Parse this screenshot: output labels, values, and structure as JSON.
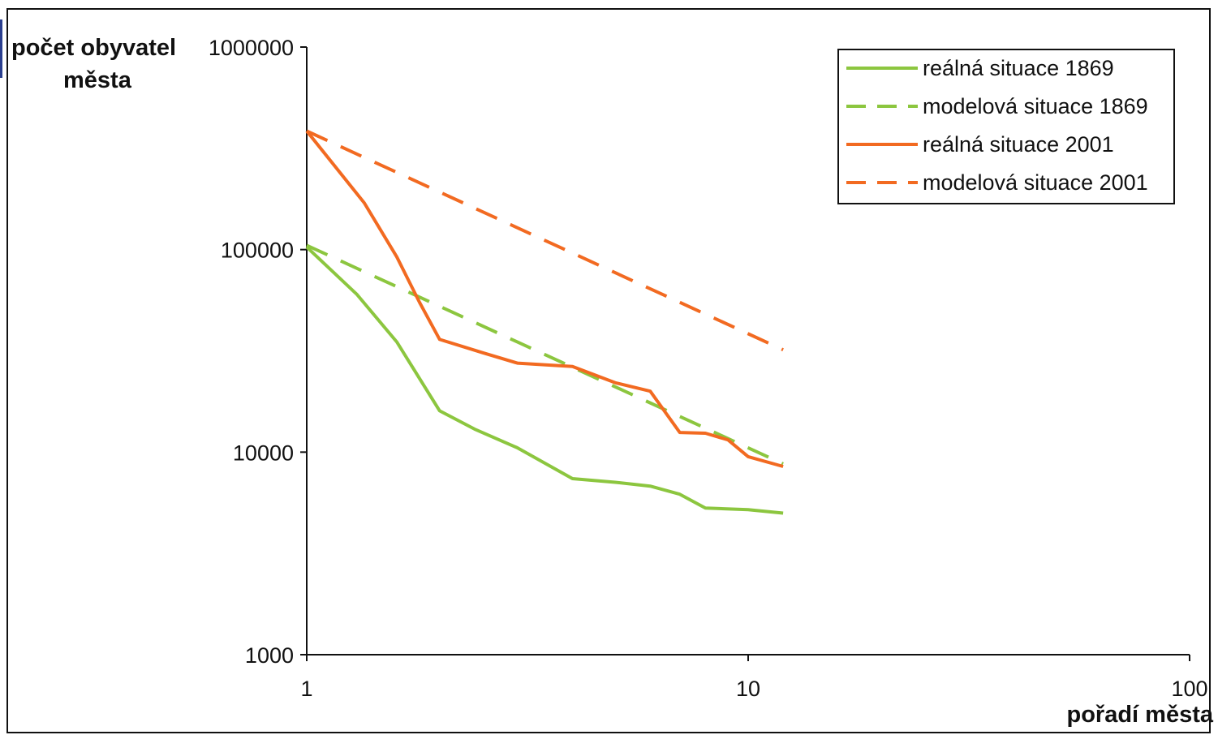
{
  "chart_data": {
    "type": "line",
    "xscale": "log",
    "yscale": "log",
    "xlim": [
      1,
      100
    ],
    "ylim": [
      1000,
      1000000
    ],
    "xticks": [
      "1",
      "10",
      "100"
    ],
    "yticks": [
      "1000",
      "10000",
      "100000",
      "1000000"
    ],
    "ylabel": [
      "počet obyvatel",
      "města"
    ],
    "xlabel": "pořadí města",
    "grid": false,
    "legend_position": "top-right",
    "series": [
      {
        "name": "reálná situace 1869",
        "color": "#8cc63f",
        "style": "solid",
        "points": [
          [
            1,
            103000
          ],
          [
            1.3,
            60000
          ],
          [
            1.6,
            35000
          ],
          [
            2,
            16000
          ],
          [
            2.4,
            13000
          ],
          [
            3,
            10500
          ],
          [
            4,
            7400
          ],
          [
            5,
            7100
          ],
          [
            6,
            6800
          ],
          [
            7,
            6200
          ],
          [
            8,
            5300
          ],
          [
            10,
            5200
          ],
          [
            12,
            5000
          ]
        ]
      },
      {
        "name": "modelová situace 1869",
        "color": "#8cc63f",
        "style": "dashed",
        "points": [
          [
            1,
            105000
          ],
          [
            12,
            8750
          ]
        ]
      },
      {
        "name": "reálná situace 2001",
        "color": "#f26a21",
        "style": "solid",
        "points": [
          [
            1,
            385000
          ],
          [
            1.35,
            170000
          ],
          [
            1.6,
            92000
          ],
          [
            1.8,
            55000
          ],
          [
            2,
            36000
          ],
          [
            2.5,
            31000
          ],
          [
            3,
            27500
          ],
          [
            4,
            26500
          ],
          [
            5,
            22000
          ],
          [
            6,
            20000
          ],
          [
            7,
            12500
          ],
          [
            8,
            12400
          ],
          [
            9,
            11500
          ],
          [
            10,
            9500
          ],
          [
            12,
            8500
          ]
        ]
      },
      {
        "name": "modelová situace 2001",
        "color": "#f26a21",
        "style": "dashed",
        "points": [
          [
            1,
            385000
          ],
          [
            12,
            32000
          ]
        ]
      }
    ]
  }
}
